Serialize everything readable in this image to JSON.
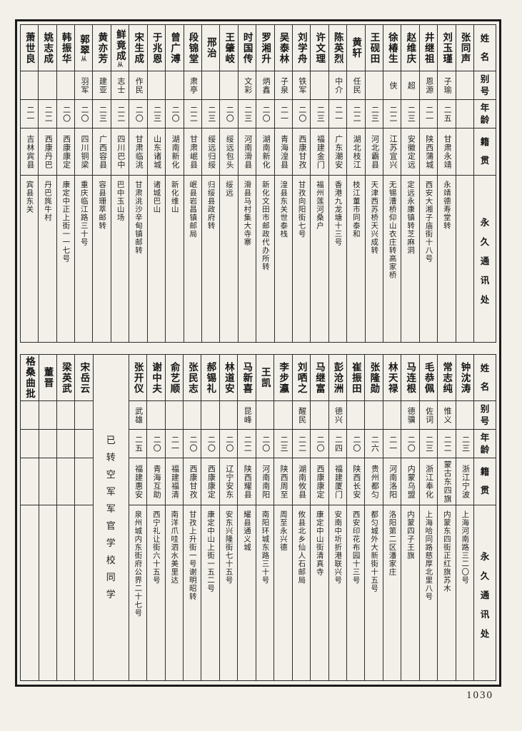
{
  "page_number": "1030",
  "headers": {
    "name": "姓名",
    "alias": "别号",
    "age": "年龄",
    "origin": "籍贯",
    "address": "永久通讯处"
  },
  "tables": [
    {
      "id": "top",
      "entries": [
        {
          "name": "张同声"
        },
        {
          "name": "刘玉瑾",
          "alias": "子瑜",
          "age": "二五",
          "origin": "甘肃永靖",
          "address": "永靖德寿堂转"
        },
        {
          "name": "井继祖",
          "alias": "恩源",
          "age": "二一",
          "origin": "陕西蒲城",
          "address": "西安大湘子庙街十八号"
        },
        {
          "name": "赵维庆",
          "alias": "超",
          "age": "二三",
          "origin": "安徽定远",
          "address": "定远永康镇转芝麻洞"
        },
        {
          "name": "徐椿生",
          "alias": "侠",
          "age": "二二",
          "origin": "江苏宜兴",
          "address": "无锡漕桥仰山衣庄转高家桥"
        },
        {
          "name": "王砚田",
          "age": "二三",
          "origin": "河北霸县",
          "address": "天津西苏桥天兴成转"
        },
        {
          "name": "黄轩",
          "alias": "任民",
          "age": "二二",
          "origin": "湖北枝江",
          "address": "枝江董市同泰和"
        },
        {
          "name": "陈英烈",
          "alias": "中介",
          "age": "二一",
          "origin": "广东潮安",
          "address": "香港九龙塘十三号"
        },
        {
          "name": "许文理",
          "age": "二三",
          "origin": "福建金门",
          "address": "福州莲河桑户"
        },
        {
          "name": "刘学舟",
          "alias": "铁军",
          "age": "二〇",
          "origin": "西康甘孜",
          "address": "甘孜向阳街七号"
        },
        {
          "name": "吴泰林",
          "alias": "子泉",
          "age": "二一",
          "origin": "青海湟县",
          "address": "湟县东关世泰栈"
        },
        {
          "name": "罗湘升",
          "alias": "炳鑫",
          "age": "二〇",
          "origin": "湖南新化",
          "address": "新化文田市邮政代办所转"
        },
        {
          "name": "时国传",
          "alias": "文彩",
          "age": "二三",
          "origin": "河南滑县",
          "address": "滑县马村集大寺寨"
        },
        {
          "name": "王肇岐",
          "age": "二〇",
          "origin": "绥远包头",
          "address": "绥远"
        },
        {
          "name": "邢治",
          "age": "二三",
          "origin": "绥远归绥",
          "address": "归绥县政府转"
        },
        {
          "name": "段锦堂",
          "alias": "肃亭",
          "age": "二二",
          "origin": "甘肃岷县",
          "address": "岷县岩昌镇邮局"
        },
        {
          "name": "曾广溥",
          "age": "二〇",
          "origin": "湖南新化",
          "address": "新化维山"
        },
        {
          "name": "于兆恩",
          "age": "二三",
          "origin": "山东诸城",
          "address": "诸城巴山"
        },
        {
          "name": "宋生成",
          "alias": "作民",
          "age": "二〇",
          "origin": "甘肃临洮",
          "address": "甘肃洮沙辛甸镇邮转"
        },
        {
          "name": "鲜竟成",
          "mark": "从",
          "alias": "志士",
          "age": "二二",
          "origin": "四川巴中",
          "address": "巴中玉山场"
        },
        {
          "name": "黄亦芳",
          "alias": "建亚",
          "age": "二三",
          "origin": "广西容县",
          "address": "容县珊萃邮转"
        },
        {
          "name": "郭翠",
          "mark": "从",
          "alias": "羽军",
          "age": "二〇",
          "origin": "四川铜梁",
          "address": "重庆临江路三十号"
        },
        {
          "name": "韩振华",
          "age": "二〇",
          "origin": "西康康定",
          "address": "康定中正上街一一七号"
        },
        {
          "name": "姚志成",
          "age": "二二",
          "origin": "西康丹巴",
          "address": "丹巴旄牛村"
        },
        {
          "name": "萧世良",
          "age": "二一",
          "origin": "吉林宾县",
          "address": "宾县东关"
        }
      ]
    },
    {
      "id": "bottom",
      "entries": [
        {
          "name": "钟沈涛",
          "age": "二三",
          "origin": "浙江宁波",
          "address": "上海河南路三二〇号"
        },
        {
          "name": "常志纯",
          "alias": "惟义",
          "age": "二二",
          "origin": "蒙古东四旗",
          "address": "内蒙东四街正红旗苏木"
        },
        {
          "name": "毛恭佩",
          "alias": "佐词",
          "age": "二三",
          "origin": "浙江奉化",
          "address": "上海哈同路慈厚北里八号"
        },
        {
          "name": "马连根",
          "alias": "德骥",
          "age": "二〇",
          "origin": "内蒙乌盟",
          "address": "内蒙四子王旗"
        },
        {
          "name": "林天禄",
          "age": "二一",
          "origin": "河南洛阳",
          "address": "洛阳第二区潘家庄"
        },
        {
          "name": "张隆勋",
          "age": "二六",
          "origin": "贵州都匀",
          "address": "都匀城外大新街十五号"
        },
        {
          "name": "崔振田",
          "age": "二〇",
          "origin": "陕西长安",
          "address": "西安印花布园十三号"
        },
        {
          "name": "彭沧洲",
          "alias": "德兴",
          "age": "二四",
          "origin": "福建厦门",
          "address": "安南中圻折港联兴号"
        },
        {
          "name": "马继富",
          "age": "二〇",
          "origin": "西康康定",
          "address": "康定中山街清真寺"
        },
        {
          "name": "刘哂之",
          "alias": "醒民",
          "age": "二二",
          "origin": "湖南攸县",
          "address": "攸县北乡仙人石邮局"
        },
        {
          "name": "李步瀛",
          "age": "二三",
          "origin": "陕西周至",
          "address": "周至永兴德"
        },
        {
          "name": "王凯",
          "age": "二〇",
          "origin": "河南南阳",
          "address": "南阳环城东路三十号"
        },
        {
          "name": "马新喜",
          "alias": "昆峰",
          "age": "二二",
          "origin": "陕西耀县",
          "address": "耀县通义城"
        },
        {
          "name": "林道安",
          "age": "二〇",
          "origin": "辽宁安东",
          "address": "安东兴隆街七十五号"
        },
        {
          "name": "郝锡礼",
          "age": "二〇",
          "origin": "西康康定",
          "address": "康定中山上街一五二号"
        },
        {
          "name": "张民志",
          "age": "二〇",
          "origin": "西康甘孜",
          "address": "甘孜上升街一号谢明昭转"
        },
        {
          "name": "俞艺顺",
          "age": "二一",
          "origin": "福建福清",
          "address": "南洋爪哇泗水美里达"
        },
        {
          "name": "谢中夫",
          "age": "二〇",
          "origin": "青海互助",
          "address": "西宁礼让街六十五号"
        },
        {
          "name": "张开仪",
          "alias": "武雄",
          "age": "二五",
          "origin": "福建惠安",
          "address": "泉州城内东街府公界二十七号"
        },
        {
          "type": "note",
          "span": 2,
          "text": "已转空军军官学校同学"
        },
        {
          "name": "宋岳云"
        },
        {
          "name": "梁英武"
        },
        {
          "name": "董晋"
        },
        {
          "name": "格桑曲批"
        }
      ]
    }
  ]
}
